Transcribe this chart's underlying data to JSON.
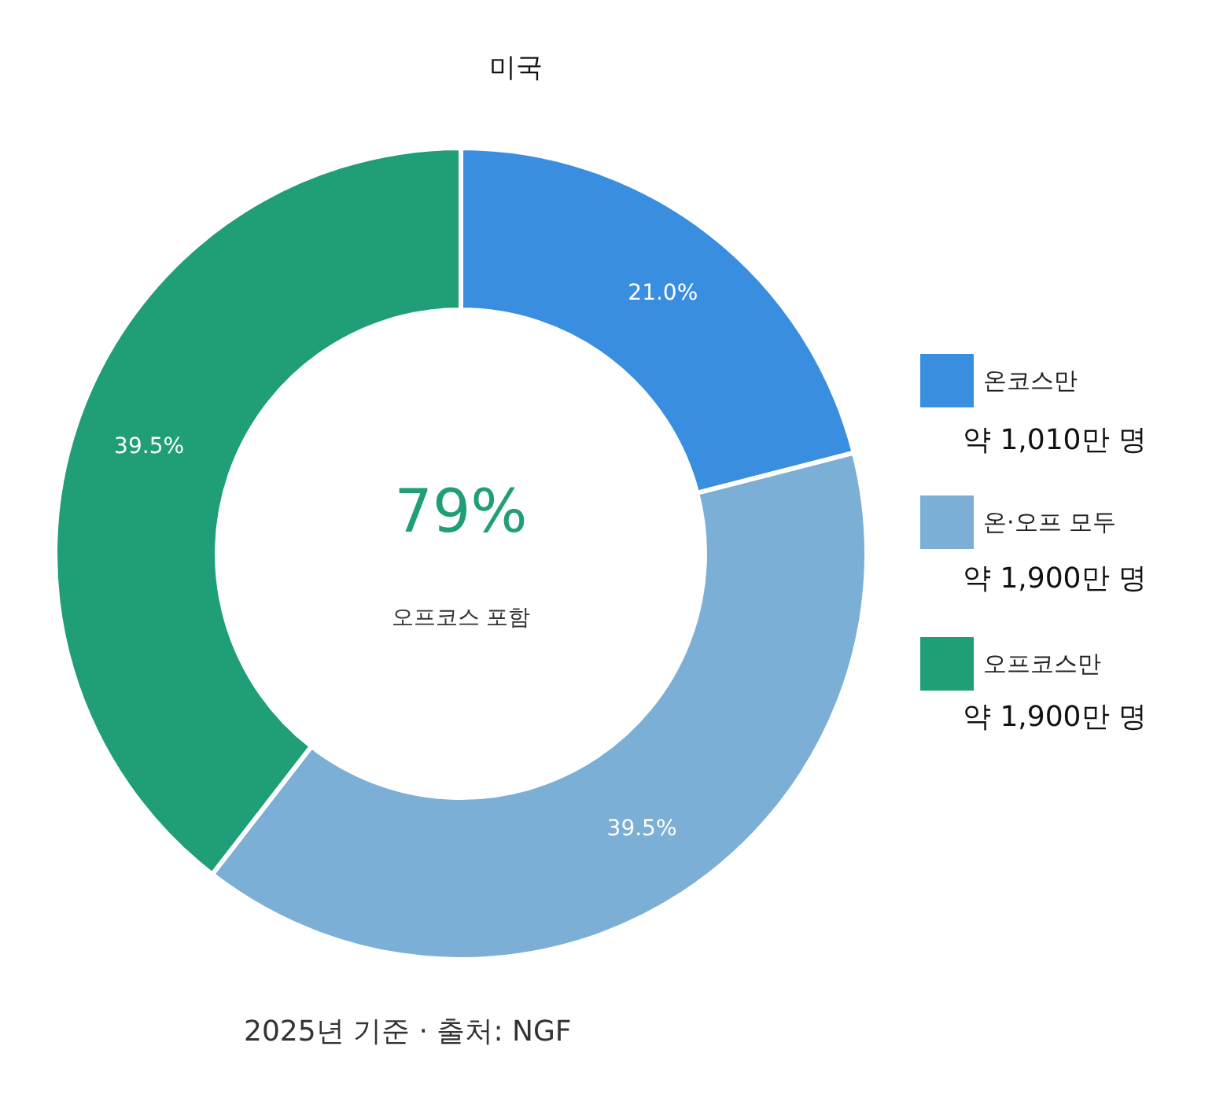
{
  "chart_data": {
    "type": "donut",
    "title": "미국",
    "categories": [
      "온코스만",
      "온·오프 모두",
      "오프코스만"
    ],
    "values": [
      21.0,
      39.5,
      39.5
    ],
    "colors": [
      "#3a8ee0",
      "#7bafd6",
      "#1f9e78"
    ],
    "value_labels": [
      "21.0%",
      "39.5%",
      "39.5%"
    ],
    "legend": "right",
    "annotations": [
      "79%",
      "오프코스 포함",
      "약 1,010만 명",
      "약 1,900만 명",
      "약 1,900만 명",
      "2025년 기준 · 출처: NGF"
    ]
  }
}
